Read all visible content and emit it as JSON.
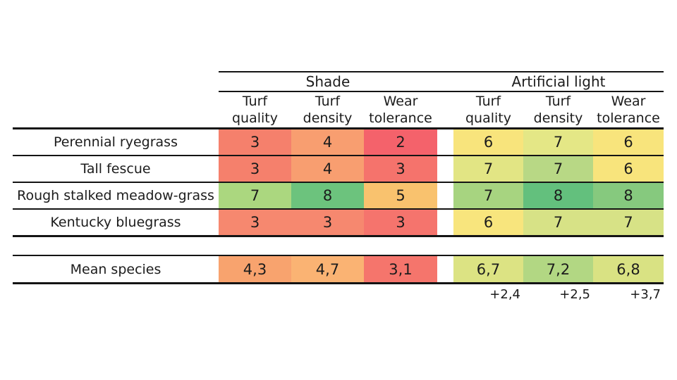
{
  "chart_data": {
    "type": "heatmap",
    "title": "",
    "group_headers": [
      "Shade",
      "Artificial light"
    ],
    "columns_per_group": [
      "Turf quality",
      "Turf density",
      "Wear tolerance"
    ],
    "rows": [
      {
        "name": "Perennial ryegrass",
        "shade": [
          3,
          4,
          2
        ],
        "artificial": [
          6,
          7,
          6
        ]
      },
      {
        "name": "Tall fescue",
        "shade": [
          3,
          4,
          3
        ],
        "artificial": [
          7,
          7,
          6
        ]
      },
      {
        "name": "Rough stalked meadow-grass",
        "shade": [
          7,
          8,
          5
        ],
        "artificial": [
          7,
          8,
          8
        ]
      },
      {
        "name": "Kentucky bluegrass",
        "shade": [
          3,
          3,
          3
        ],
        "artificial": [
          6,
          7,
          7
        ]
      }
    ],
    "mean_row": {
      "name": "Mean species",
      "shade": [
        4.3,
        4.7,
        3.1
      ],
      "artificial": [
        6.7,
        7.2,
        6.8
      ]
    },
    "difference_row": {
      "artificial": [
        2.4,
        2.5,
        3.7
      ]
    },
    "value_scale": {
      "min": 2,
      "max": 8,
      "low_color": "#F4626B",
      "mid_color": "#F8E47C",
      "high_color": "#63C07D"
    },
    "decimal_separator": ","
  },
  "table": {
    "group1_label": "Shade",
    "group2_label": "Artificial light",
    "sub_headers": [
      "Turf quality",
      "Turf density",
      "Wear tolerance",
      "Turf quality",
      "Turf density",
      "Wear tolerance"
    ],
    "rows": [
      {
        "name": "Perennial ryegrass",
        "cells": [
          {
            "text": "3",
            "color": "#F5806C"
          },
          {
            "text": "4",
            "color": "#F89E70"
          },
          {
            "text": "2",
            "color": "#F4626B"
          },
          {
            "text": "6",
            "color": "#F8E47C"
          },
          {
            "text": "7",
            "color": "#E4E786"
          },
          {
            "text": "6",
            "color": "#F8E47C"
          }
        ]
      },
      {
        "name": "Tall fescue",
        "cells": [
          {
            "text": "3",
            "color": "#F5806C"
          },
          {
            "text": "4",
            "color": "#F89E70"
          },
          {
            "text": "3",
            "color": "#F5736C"
          },
          {
            "text": "7",
            "color": "#E2E584"
          },
          {
            "text": "7",
            "color": "#B8D885"
          },
          {
            "text": "6",
            "color": "#F8E47C"
          }
        ]
      },
      {
        "name": "Rough stalked meadow-grass",
        "cells": [
          {
            "text": "7",
            "color": "#ABD77F"
          },
          {
            "text": "8",
            "color": "#6CC37D"
          },
          {
            "text": "5",
            "color": "#F9C26E"
          },
          {
            "text": "7",
            "color": "#A7D480"
          },
          {
            "text": "8",
            "color": "#63C07D"
          },
          {
            "text": "8",
            "color": "#86C97E"
          }
        ]
      },
      {
        "name": "Kentucky bluegrass",
        "cells": [
          {
            "text": "3",
            "color": "#F6886F"
          },
          {
            "text": "3",
            "color": "#F6886F"
          },
          {
            "text": "3",
            "color": "#F5746D"
          },
          {
            "text": "6",
            "color": "#F8E57D"
          },
          {
            "text": "7",
            "color": "#D7E286"
          },
          {
            "text": "7",
            "color": "#D7E286"
          }
        ]
      }
    ],
    "mean_row": {
      "name": "Mean species",
      "cells": [
        {
          "text": "4,3",
          "color": "#F8A36E"
        },
        {
          "text": "4,7",
          "color": "#FAB373"
        },
        {
          "text": "3,1",
          "color": "#F5756C"
        },
        {
          "text": "6,7",
          "color": "#DCE383"
        },
        {
          "text": "7,2",
          "color": "#B2D783"
        },
        {
          "text": "6,8",
          "color": "#D9E283"
        }
      ]
    },
    "diff_row": [
      "+2,4",
      "+2,5",
      "+3,7"
    ]
  }
}
